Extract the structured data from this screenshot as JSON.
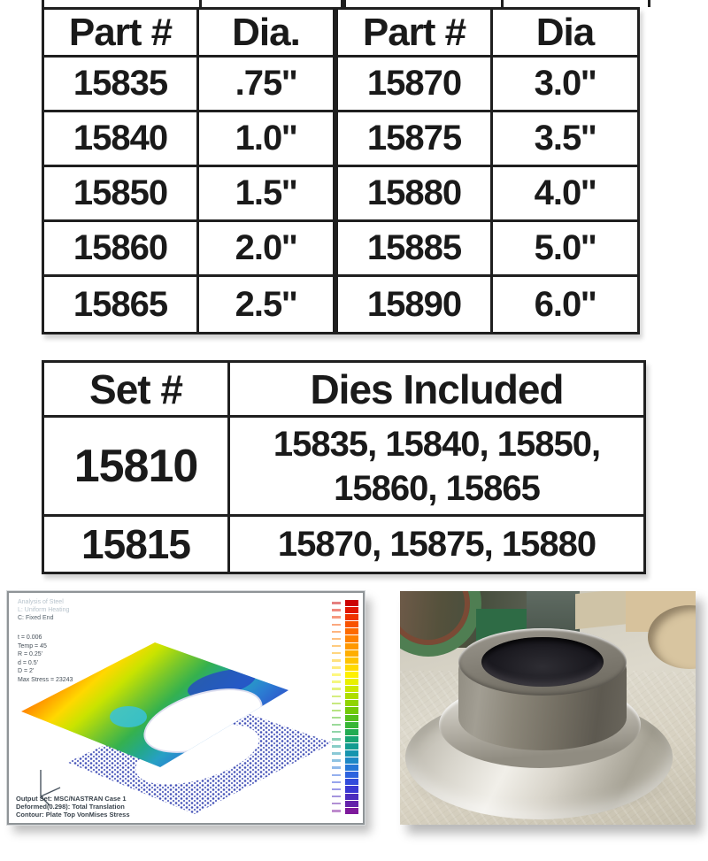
{
  "colors": {
    "accent_red": "#e8261f",
    "table_line": "#1f1f1f",
    "text_black": "#1a1a1a"
  },
  "parts_table": {
    "headers": [
      "Part #",
      "Dia.",
      "Part #",
      "Dia"
    ],
    "rows": [
      [
        "15835",
        ".75''",
        "15870",
        "3.0''"
      ],
      [
        "15840",
        "1.0''",
        "15875",
        "3.5''"
      ],
      [
        "15850",
        "1.5''",
        "15880",
        "4.0''"
      ],
      [
        "15860",
        "2.0''",
        "15885",
        "5.0''"
      ],
      [
        "15865",
        "2.5''",
        "15890",
        "6.0''"
      ]
    ]
  },
  "sets_table": {
    "headers": [
      "Set #",
      "Dies Included"
    ],
    "rows": [
      {
        "set": "15810",
        "dies": "15835, 15840, 15850, 15860, 15865"
      },
      {
        "set": "15815",
        "dies": "15870, 15875, 15880"
      }
    ]
  },
  "fea_panel": {
    "header_lines": [
      "Analysis of Steel",
      "L: Uniform Heating",
      "C: Fixed End"
    ],
    "param_lines": [
      "t = 0.006",
      "Temp = 45",
      "R = 0.25'",
      "d = 0.5'",
      "D = 2'",
      "Max Stress = 23243"
    ],
    "caption_lines": [
      "Output Set: MSC/NASTRAN Case 1",
      "Deformed(0.298): Total Translation",
      "Contour: Plate Top VonMises Stress"
    ],
    "colorbar_colors": [
      "#cc0202",
      "#e11500",
      "#ef3300",
      "#f85200",
      "#fd6b00",
      "#ff8200",
      "#ff9800",
      "#ffae00",
      "#ffc400",
      "#ffda00",
      "#fef000",
      "#e9f000",
      "#cce800",
      "#aede00",
      "#90d400",
      "#72ca06",
      "#54c01c",
      "#38b636",
      "#22ac52",
      "#16a472",
      "#129c90",
      "#1694ae",
      "#1e88c6",
      "#2677d6",
      "#2c62de",
      "#324cdc",
      "#3a38d2",
      "#4c2cbe",
      "#6422aa",
      "#7e1a9c",
      "#9612a0",
      "#a80e9a"
    ]
  }
}
